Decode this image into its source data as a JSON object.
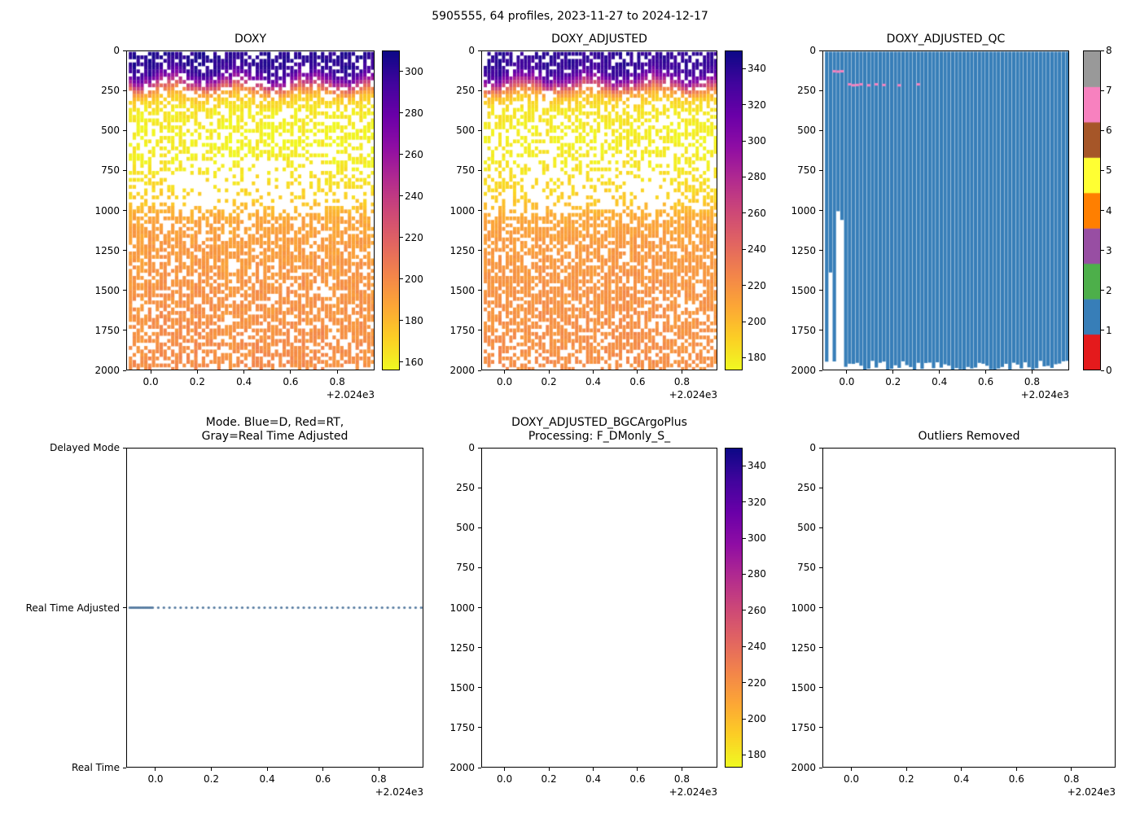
{
  "figure": {
    "title": "5905555, 64 profiles, 2023-11-27 to 2024-12-17",
    "background": "#ffffff",
    "text_color": "#000000"
  },
  "axes_common": {
    "xlim": [
      -0.105,
      0.96
    ],
    "x_tick_values": [
      0.0,
      0.2,
      0.4,
      0.6,
      0.8
    ],
    "x_tick_labels": [
      "0.0",
      "0.2",
      "0.4",
      "0.6",
      "0.8"
    ],
    "x_offset_label": "+2.024e3",
    "depth_lim": [
      0,
      2000
    ],
    "depth_tick_values": [
      0,
      250,
      500,
      750,
      1000,
      1250,
      1500,
      1750,
      2000
    ],
    "depth_tick_labels": [
      "0",
      "250",
      "500",
      "750",
      "1000",
      "1250",
      "1500",
      "1750",
      "2000"
    ]
  },
  "colormaps": {
    "plasma": [
      "#0d0887",
      "#41049d",
      "#6a00a8",
      "#8f0da4",
      "#b12a90",
      "#cc4778",
      "#e16462",
      "#f2844b",
      "#fca636",
      "#fcce25",
      "#f0f921"
    ],
    "set1": [
      "#e41a1c",
      "#377eb8",
      "#4daf4a",
      "#984ea3",
      "#ff7f00",
      "#ffff33",
      "#a65628",
      "#f781bf",
      "#999999"
    ]
  },
  "chart_data": [
    {
      "id": "doxy",
      "type": "profile-heatmap",
      "title": "DOXY",
      "colormap": "plasma_r",
      "clim": [
        156,
        310
      ],
      "colorbar_ticks": [
        160,
        180,
        200,
        220,
        240,
        260,
        280,
        300
      ],
      "n_profiles": 64,
      "x_start": -0.09,
      "x_end": 0.955,
      "seed": 7,
      "depth_profile": {
        "depths": [
          0,
          60,
          120,
          160,
          200,
          240,
          280,
          350,
          500,
          700,
          900,
          980,
          1050,
          1200,
          1500,
          2000
        ],
        "values": [
          304,
          302,
          296,
          272,
          235,
          198,
          174,
          163,
          159,
          161,
          170,
          180,
          188,
          192,
          196,
          199
        ]
      },
      "gap_profile": {
        "depths": [
          0,
          60,
          150,
          250,
          400,
          600,
          800,
          950,
          1020,
          1200,
          1600,
          2000
        ],
        "probs": [
          0.28,
          0.25,
          0.2,
          0.3,
          0.42,
          0.5,
          0.55,
          0.6,
          0.3,
          0.27,
          0.3,
          0.36
        ]
      }
    },
    {
      "id": "doxy_adjusted",
      "type": "profile-heatmap",
      "title": "DOXY_ADJUSTED",
      "colormap": "plasma_r",
      "clim": [
        173,
        350
      ],
      "colorbar_ticks": [
        180,
        200,
        220,
        240,
        260,
        280,
        300,
        320,
        340
      ],
      "n_profiles": 64,
      "x_start": -0.09,
      "x_end": 0.955,
      "seed": 13,
      "depth_profile": {
        "depths": [
          0,
          60,
          120,
          160,
          200,
          240,
          280,
          350,
          500,
          700,
          900,
          980,
          1050,
          1200,
          1500,
          2000
        ],
        "values": [
          340,
          338,
          331,
          304,
          263,
          222,
          195,
          182,
          178,
          180,
          190,
          201,
          210,
          215,
          219,
          222
        ]
      },
      "gap_profile": {
        "depths": [
          0,
          60,
          150,
          250,
          400,
          600,
          800,
          950,
          1020,
          1200,
          1600,
          2000
        ],
        "probs": [
          0.28,
          0.25,
          0.2,
          0.3,
          0.42,
          0.5,
          0.55,
          0.6,
          0.3,
          0.27,
          0.3,
          0.36
        ]
      }
    },
    {
      "id": "doxy_adjusted_qc",
      "type": "qc-heatmap",
      "title": "DOXY_ADJUSTED_QC",
      "colorbar_ticks": [
        0,
        1,
        2,
        3,
        4,
        5,
        6,
        7,
        8
      ],
      "qc_palette": "set1",
      "dominant_qc": 1,
      "n_profiles": 64,
      "x_start": -0.09,
      "x_end": 0.955,
      "seed": 23,
      "short_profiles": [
        {
          "index": 1,
          "max_depth": 1390
        },
        {
          "index": 3,
          "max_depth": 1005
        },
        {
          "index": 4,
          "max_depth": 1060
        }
      ],
      "anomalies": [
        {
          "index": 2,
          "depth": 118,
          "qc": 7
        },
        {
          "index": 3,
          "depth": 120,
          "qc": 7
        },
        {
          "index": 4,
          "depth": 118,
          "qc": 7
        },
        {
          "index": 6,
          "depth": 200,
          "qc": 7
        },
        {
          "index": 7,
          "depth": 206,
          "qc": 7
        },
        {
          "index": 8,
          "depth": 204,
          "qc": 7
        },
        {
          "index": 9,
          "depth": 200,
          "qc": 7
        },
        {
          "index": 11,
          "depth": 206,
          "qc": 7
        },
        {
          "index": 13,
          "depth": 200,
          "qc": 7
        },
        {
          "index": 15,
          "depth": 204,
          "qc": 7
        },
        {
          "index": 19,
          "depth": 206,
          "qc": 7
        },
        {
          "index": 24,
          "depth": 200,
          "qc": 7
        }
      ]
    },
    {
      "id": "mode",
      "type": "category-scatter",
      "title": "Mode. Blue=D, Red=RT,\nGray=Real Time Adjusted",
      "y_categories": [
        "Delayed Mode",
        "Real Time Adjusted",
        "Real Time"
      ],
      "marker_color": "#53799f",
      "series": {
        "category": "Real Time Adjusted",
        "n": 64,
        "x_start": -0.095,
        "dense_count": 16,
        "dense_spacing": 0.0055,
        "x_end": 0.955
      }
    },
    {
      "id": "bgc_processing",
      "type": "empty-with-colorbar",
      "title": "DOXY_ADJUSTED_BGCArgoPlus\nProcessing: F_DMonly_S_",
      "colormap": "plasma_r",
      "clim": [
        173,
        350
      ],
      "colorbar_ticks": [
        180,
        200,
        220,
        240,
        260,
        280,
        300,
        320,
        340
      ]
    },
    {
      "id": "outliers_removed",
      "type": "empty",
      "title": "Outliers Removed"
    }
  ]
}
